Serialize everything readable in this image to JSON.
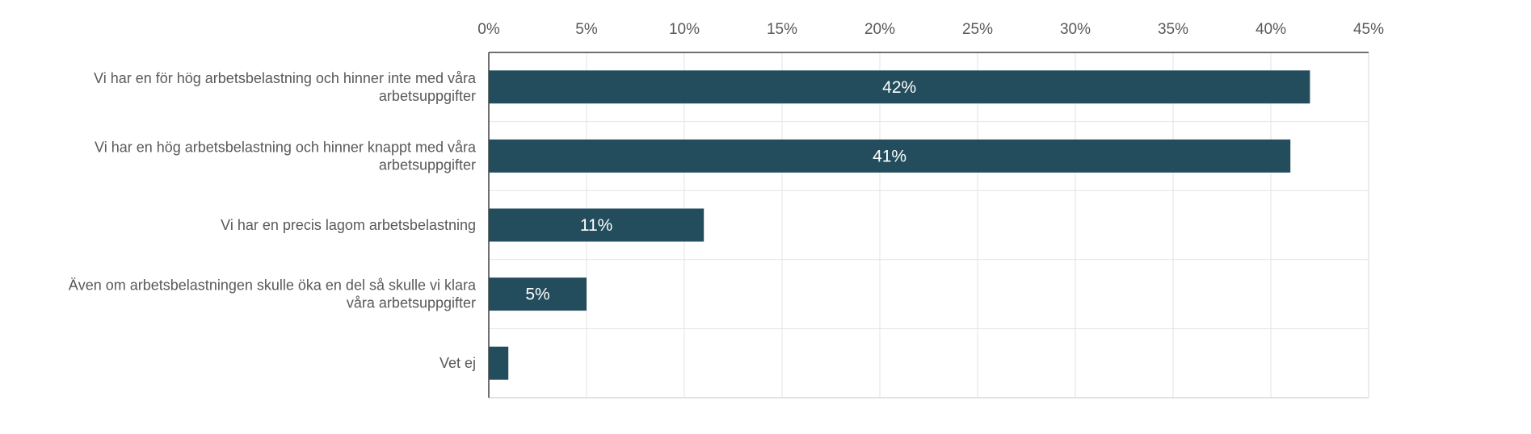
{
  "chart_data": {
    "type": "bar",
    "orientation": "horizontal",
    "categories": [
      [
        "Vi har en för hög arbetsbelastning och hinner inte med våra",
        "arbetsuppgifter"
      ],
      [
        "Vi har en hög arbetsbelastning och hinner knappt med våra",
        "arbetsuppgifter"
      ],
      [
        "Vi har en precis lagom arbetsbelastning"
      ],
      [
        "Även om arbetsbelastningen skulle öka en del så skulle vi klara",
        "våra arbetsuppgifter"
      ],
      [
        "Vet ej"
      ]
    ],
    "values": [
      42,
      41,
      11,
      5,
      1
    ],
    "data_labels": [
      "42%",
      "41%",
      "11%",
      "5%",
      ""
    ],
    "xlim": [
      0,
      45
    ],
    "ticks": [
      0,
      5,
      10,
      15,
      20,
      25,
      30,
      35,
      40,
      45
    ],
    "tick_labels": [
      "0%",
      "5%",
      "10%",
      "15%",
      "20%",
      "25%",
      "30%",
      "35%",
      "40%",
      "45%"
    ],
    "axis_position": "top",
    "grid": true,
    "bar_color": "#234d5c",
    "title": "",
    "xlabel": "",
    "ylabel": ""
  }
}
